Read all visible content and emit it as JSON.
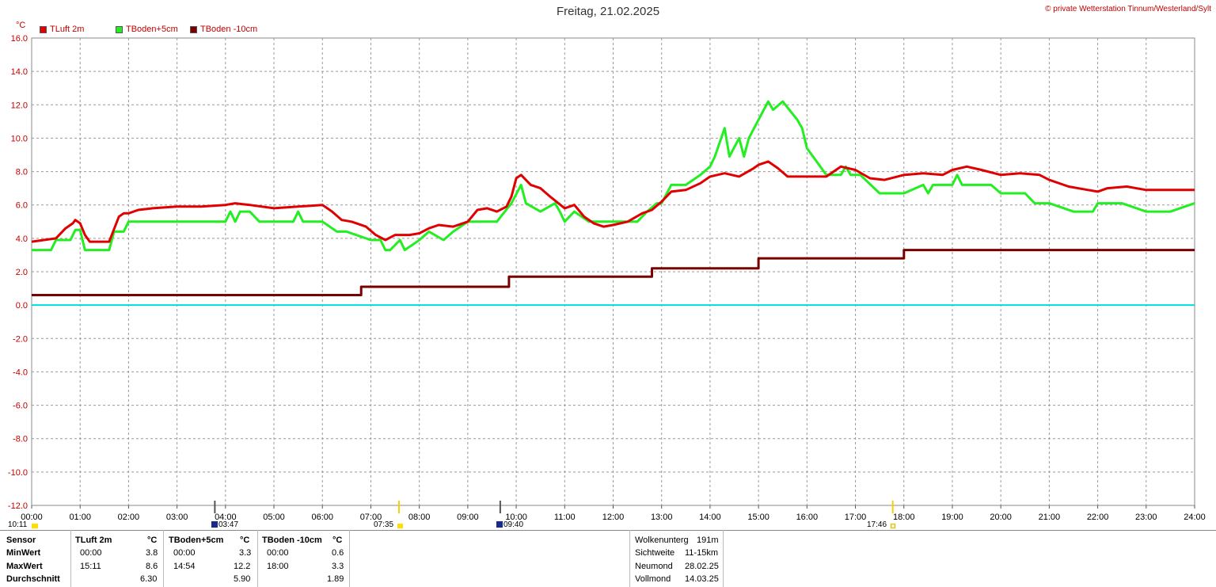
{
  "header": {
    "title": "Freitag, 21.02.2025",
    "credit": "© private Wetterstation Tinnum/Westerland/Sylt",
    "unit": "°C"
  },
  "chart_data": {
    "type": "line",
    "ylim": [
      -12,
      16
    ],
    "yticks": [
      "16.0",
      "14.0",
      "12.0",
      "10.0",
      "8.0",
      "6.0",
      "4.0",
      "2.0",
      "0.0",
      "-2.0",
      "-4.0",
      "-6.0",
      "-8.0",
      "-10.0",
      "-12.0"
    ],
    "xlim": [
      0,
      24
    ],
    "xticks": [
      "00:00",
      "01:00",
      "02:00",
      "03:00",
      "04:00",
      "05:00",
      "06:00",
      "07:00",
      "08:00",
      "09:00",
      "10:00",
      "11:00",
      "12:00",
      "13:00",
      "14:00",
      "15:00",
      "16:00",
      "17:00",
      "18:00",
      "19:00",
      "20:00",
      "21:00",
      "22:00",
      "23:00",
      "24:00"
    ],
    "grid": true,
    "legend_position": "top-left",
    "zero_line_color": "#00dddd",
    "series": [
      {
        "name": "TLuft 2m",
        "color": "#e00000",
        "x": [
          0,
          0.25,
          0.5,
          0.7,
          0.85,
          0.9,
          1.0,
          1.1,
          1.2,
          1.4,
          1.6,
          1.8,
          1.9,
          2.0,
          2.2,
          2.5,
          3.0,
          3.5,
          4.0,
          4.2,
          4.5,
          5.0,
          5.5,
          6.0,
          6.2,
          6.4,
          6.6,
          6.9,
          7.1,
          7.3,
          7.5,
          7.8,
          8.0,
          8.2,
          8.4,
          8.7,
          9.0,
          9.2,
          9.4,
          9.6,
          9.8,
          9.9,
          10.0,
          10.1,
          10.3,
          10.5,
          10.7,
          11.0,
          11.2,
          11.4,
          11.6,
          11.8,
          12.0,
          12.3,
          12.6,
          12.8,
          13.0,
          13.2,
          13.5,
          13.8,
          14.0,
          14.3,
          14.6,
          14.9,
          15.0,
          15.2,
          15.4,
          15.6,
          16.0,
          16.4,
          16.7,
          17.0,
          17.3,
          17.6,
          18.0,
          18.4,
          18.8,
          19.0,
          19.3,
          19.6,
          20.0,
          20.4,
          20.8,
          21.0,
          21.4,
          21.8,
          22.0,
          22.2,
          22.6,
          23.0,
          23.5,
          24.0
        ],
        "y": [
          3.8,
          3.9,
          4.0,
          4.6,
          4.9,
          5.1,
          4.9,
          4.2,
          3.8,
          3.8,
          3.8,
          5.3,
          5.5,
          5.5,
          5.7,
          5.8,
          5.9,
          5.9,
          6.0,
          6.1,
          6.0,
          5.8,
          5.9,
          6.0,
          5.6,
          5.1,
          5.0,
          4.7,
          4.2,
          3.9,
          4.2,
          4.2,
          4.3,
          4.6,
          4.8,
          4.7,
          5.0,
          5.7,
          5.8,
          5.6,
          5.9,
          6.5,
          7.6,
          7.8,
          7.2,
          7.0,
          6.5,
          5.8,
          6.0,
          5.3,
          4.9,
          4.7,
          4.8,
          5.0,
          5.5,
          5.7,
          6.2,
          6.8,
          6.9,
          7.3,
          7.7,
          7.9,
          7.7,
          8.2,
          8.4,
          8.6,
          8.2,
          7.7,
          7.7,
          7.7,
          8.3,
          8.1,
          7.6,
          7.5,
          7.8,
          7.9,
          7.8,
          8.1,
          8.3,
          8.1,
          7.8,
          7.9,
          7.8,
          7.5,
          7.1,
          6.9,
          6.8,
          7.0,
          7.1,
          6.9,
          6.9,
          6.9
        ]
      },
      {
        "name": "TBoden+5cm",
        "color": "#22ee22",
        "x": [
          0,
          0.4,
          0.5,
          0.8,
          0.9,
          1.0,
          1.1,
          1.6,
          1.7,
          1.9,
          2.0,
          2.1,
          3.5,
          4.0,
          4.1,
          4.2,
          4.3,
          4.5,
          4.7,
          5.0,
          5.4,
          5.5,
          5.6,
          5.8,
          6.0,
          6.3,
          6.5,
          7.0,
          7.2,
          7.3,
          7.4,
          7.6,
          7.7,
          8.0,
          8.2,
          8.5,
          8.7,
          9.0,
          9.2,
          9.6,
          9.9,
          10.1,
          10.2,
          10.5,
          10.8,
          10.9,
          11.0,
          11.2,
          11.5,
          11.8,
          12.0,
          12.5,
          12.7,
          12.9,
          13.0,
          13.2,
          13.5,
          13.8,
          14.0,
          14.1,
          14.3,
          14.4,
          14.6,
          14.7,
          14.8,
          15.0,
          15.2,
          15.3,
          15.5,
          15.8,
          15.9,
          16.0,
          16.4,
          16.7,
          16.8,
          16.9,
          17.0,
          17.1,
          17.5,
          18.0,
          18.4,
          18.5,
          18.6,
          19.0,
          19.1,
          19.2,
          19.5,
          19.8,
          20.0,
          20.5,
          20.7,
          21.0,
          21.5,
          21.9,
          22.0,
          22.5,
          23.0,
          23.5,
          24.0
        ],
        "y": [
          3.3,
          3.3,
          3.9,
          3.9,
          4.5,
          4.5,
          3.3,
          3.3,
          4.4,
          4.4,
          5.0,
          5.0,
          5.0,
          5.0,
          5.6,
          5.0,
          5.6,
          5.6,
          5.0,
          5.0,
          5.0,
          5.6,
          5.0,
          5.0,
          5.0,
          4.4,
          4.4,
          3.9,
          3.9,
          3.3,
          3.3,
          3.9,
          3.3,
          3.9,
          4.4,
          3.9,
          4.4,
          5.0,
          5.0,
          5.0,
          6.1,
          7.2,
          6.1,
          5.6,
          6.1,
          5.6,
          5.0,
          5.6,
          5.0,
          5.0,
          5.0,
          5.0,
          5.6,
          6.1,
          6.1,
          7.2,
          7.2,
          7.8,
          8.3,
          8.9,
          10.6,
          8.9,
          10.0,
          8.9,
          10.0,
          11.1,
          12.2,
          11.7,
          12.2,
          11.1,
          10.6,
          9.4,
          7.8,
          7.8,
          8.3,
          7.8,
          7.8,
          7.8,
          6.7,
          6.7,
          7.2,
          6.7,
          7.2,
          7.2,
          7.8,
          7.2,
          7.2,
          7.2,
          6.7,
          6.7,
          6.1,
          6.1,
          5.6,
          5.6,
          6.1,
          6.1,
          5.6,
          5.6,
          6.1
        ]
      },
      {
        "name": "TBoden -10cm",
        "color": "#7a0000",
        "x": [
          0,
          6.8,
          6.8,
          9.85,
          9.85,
          12.8,
          12.8,
          15.0,
          15.0,
          18.0,
          18.0,
          24.0
        ],
        "y": [
          0.6,
          0.6,
          1.1,
          1.1,
          1.7,
          1.7,
          2.2,
          2.2,
          2.8,
          2.8,
          3.3,
          3.3
        ]
      }
    ]
  },
  "sun_moon": {
    "first_event": "10:11",
    "moonrise": "03:47",
    "sunrise": "07:35",
    "moonset": "09:40",
    "sunset": "17:46"
  },
  "stats": {
    "headers": {
      "sensor": "Sensor",
      "unit": "°C",
      "col1": "TLuft 2m",
      "col2": "TBoden+5cm",
      "col3": "TBoden -10cm"
    },
    "rows": [
      {
        "label": "MinWert",
        "c1t": "00:00",
        "c1v": "3.8",
        "c2t": "00:00",
        "c2v": "3.3",
        "c3t": "00:00",
        "c3v": "0.6"
      },
      {
        "label": "MaxWert",
        "c1t": "15:11",
        "c1v": "8.6",
        "c2t": "14:54",
        "c2v": "12.2",
        "c3t": "18:00",
        "c3v": "3.3"
      },
      {
        "label": "Durchschnitt",
        "c1t": "",
        "c1v": "6.30",
        "c2t": "",
        "c2v": "5.90",
        "c3t": "",
        "c3v": "1.89"
      }
    ]
  },
  "info": [
    {
      "label": "Wolkenunterg",
      "value": "191m"
    },
    {
      "label": "Sichtweite",
      "value": "11-15km"
    },
    {
      "label": "Neumond",
      "value": "28.02.25"
    },
    {
      "label": "Vollmond",
      "value": "14.03.25"
    }
  ]
}
